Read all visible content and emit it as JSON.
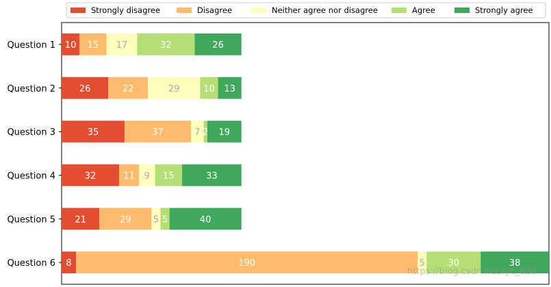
{
  "chart_data": {
    "type": "bar",
    "orientation": "horizontal",
    "stacked": true,
    "categories": [
      "Question 1",
      "Question 2",
      "Question 3",
      "Question 4",
      "Question 5",
      "Question 6"
    ],
    "series": [
      {
        "name": "Strongly disagree",
        "color": "#e34e33",
        "label_color": "#ffffff",
        "values": [
          10,
          26,
          35,
          32,
          21,
          8
        ]
      },
      {
        "name": "Disagree",
        "color": "#fdbb6c",
        "label_color": "#ffffff",
        "values": [
          15,
          22,
          37,
          11,
          29,
          190
        ]
      },
      {
        "name": "Neither agree nor disagree",
        "color": "#fefdbe",
        "label_color": "#a9a9a9",
        "values": [
          17,
          29,
          7,
          9,
          5,
          5
        ]
      },
      {
        "name": "Agree",
        "color": "#b5df74",
        "label_color": "#ffffff",
        "values": [
          32,
          10,
          2,
          15,
          5,
          30
        ]
      },
      {
        "name": "Strongly agree",
        "color": "#3fa85d",
        "label_color": "#ffffff",
        "values": [
          26,
          13,
          19,
          33,
          40,
          38
        ]
      }
    ],
    "xlim": [
      0,
      271
    ],
    "x_axis_visible": false,
    "legend_position": "top",
    "legend_columns": 5
  },
  "watermark": "https://blog.csdn.net/lyc_828"
}
